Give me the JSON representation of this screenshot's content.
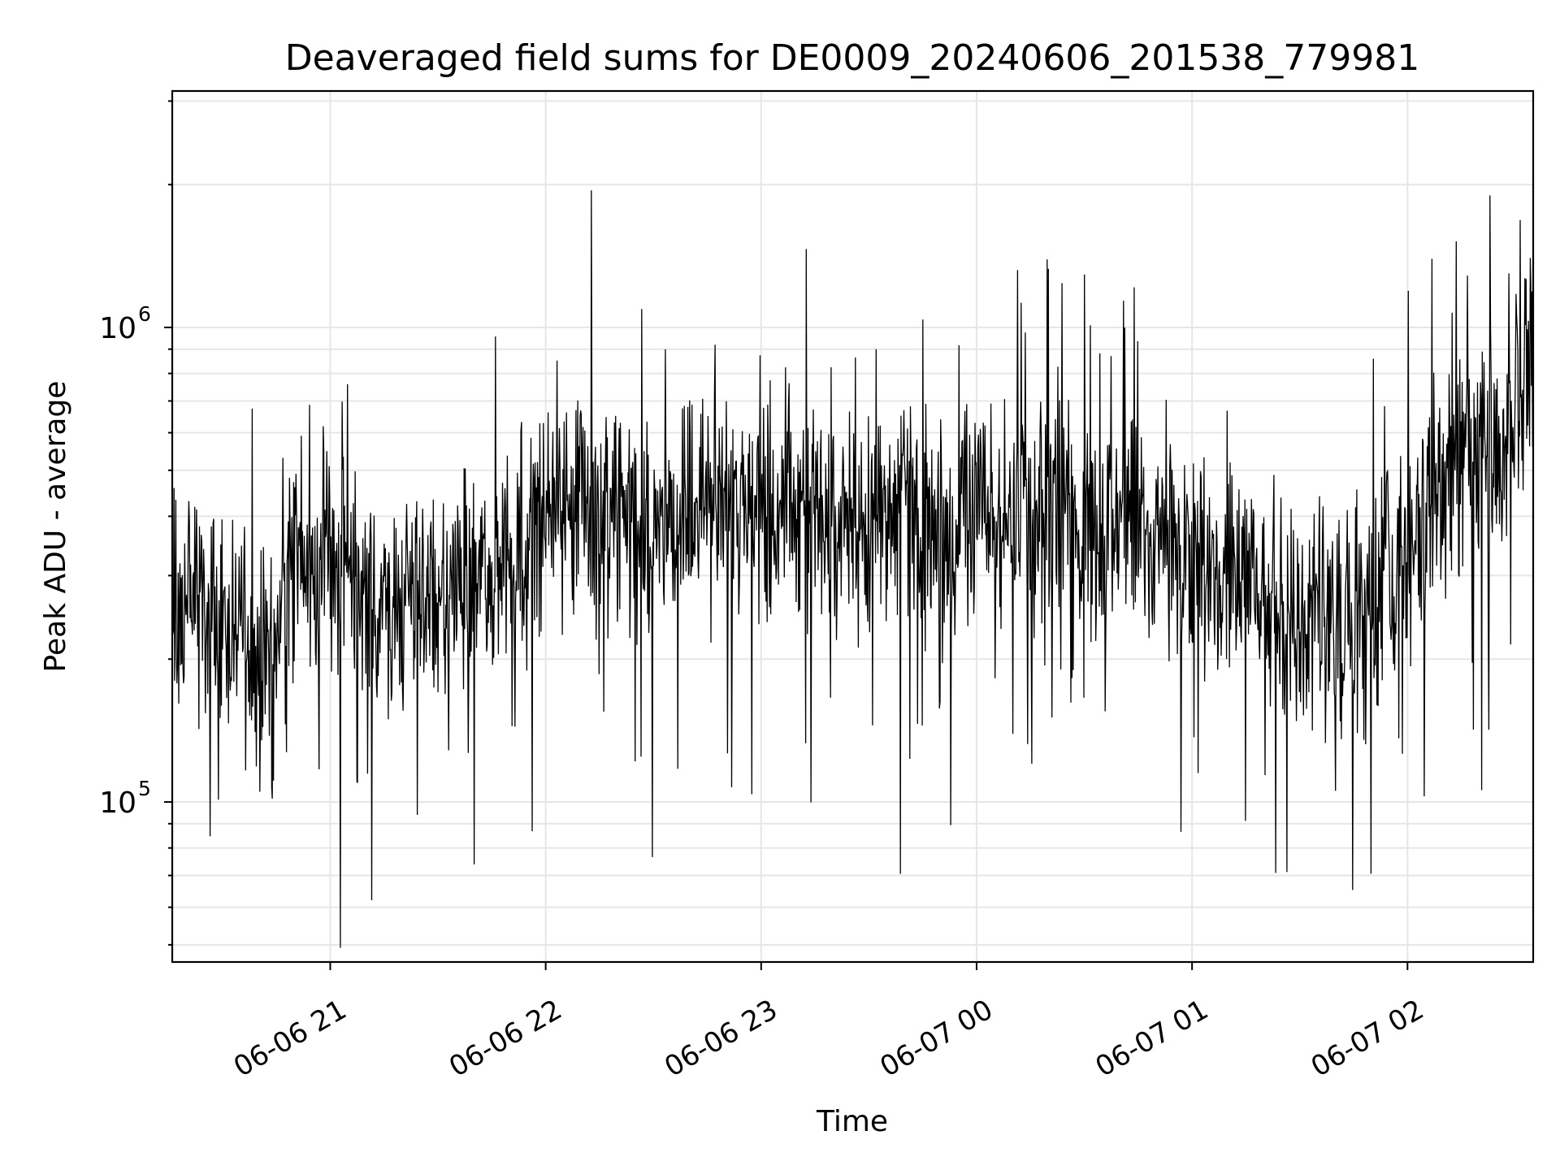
{
  "chart_data": {
    "type": "line",
    "title": "Deaveraged field sums for DE0009_20240606_201538_779981",
    "xlabel": "Time",
    "ylabel": "Peak ADU - average",
    "yscale": "log",
    "xlim": [
      "2024-06-06 20:16",
      "2024-06-07 02:35"
    ],
    "ylim": [
      46000,
      3150000
    ],
    "x_ticks": [
      {
        "value": "2024-06-06 21:00",
        "label": "06-06 21"
      },
      {
        "value": "2024-06-06 22:00",
        "label": "06-06 22"
      },
      {
        "value": "2024-06-06 23:00",
        "label": "06-06 23"
      },
      {
        "value": "2024-06-07 00:00",
        "label": "06-07 00"
      },
      {
        "value": "2024-06-07 01:00",
        "label": "06-07 01"
      },
      {
        "value": "2024-06-07 02:00",
        "label": "06-07 02"
      }
    ],
    "y_ticks": [
      {
        "value": 100000,
        "base": "10",
        "exponent": "5"
      },
      {
        "value": 1000000,
        "base": "10",
        "exponent": "6"
      }
    ],
    "grid": "major and minor",
    "line_color": "#000000",
    "series": [
      {
        "x": [
          "2024-06-06 20:16",
          "2024-06-06 20:20",
          "2024-06-06 20:25",
          "2024-06-06 20:30",
          "2024-06-06 20:35",
          "2024-06-06 20:40",
          "2024-06-06 20:45",
          "2024-06-06 20:50",
          "2024-06-06 20:55",
          "2024-06-06 21:00",
          "2024-06-06 21:10",
          "2024-06-06 21:20",
          "2024-06-06 21:30",
          "2024-06-06 21:40",
          "2024-06-06 21:50",
          "2024-06-06 22:00",
          "2024-06-06 22:15",
          "2024-06-06 22:30",
          "2024-06-06 22:45",
          "2024-06-06 23:00",
          "2024-06-06 23:15",
          "2024-06-06 23:30",
          "2024-06-06 23:45",
          "2024-06-07 00:00",
          "2024-06-07 00:15",
          "2024-06-07 00:30",
          "2024-06-07 00:45",
          "2024-06-07 01:00",
          "2024-06-07 01:15",
          "2024-06-07 01:30",
          "2024-06-07 01:45",
          "2024-06-07 02:00",
          "2024-06-07 02:10",
          "2024-06-07 02:20",
          "2024-06-07 02:30",
          "2024-06-07 02:35"
        ],
        "values": [
          280000,
          250000,
          240000,
          230000,
          220000,
          210000,
          230000,
          300000,
          320000,
          300000,
          290000,
          270000,
          280000,
          300000,
          330000,
          420000,
          390000,
          380000,
          400000,
          420000,
          410000,
          400000,
          390000,
          400000,
          400000,
          410000,
          380000,
          330000,
          290000,
          250000,
          240000,
          330000,
          480000,
          600000,
          650000,
          850000
        ]
      }
    ]
  }
}
